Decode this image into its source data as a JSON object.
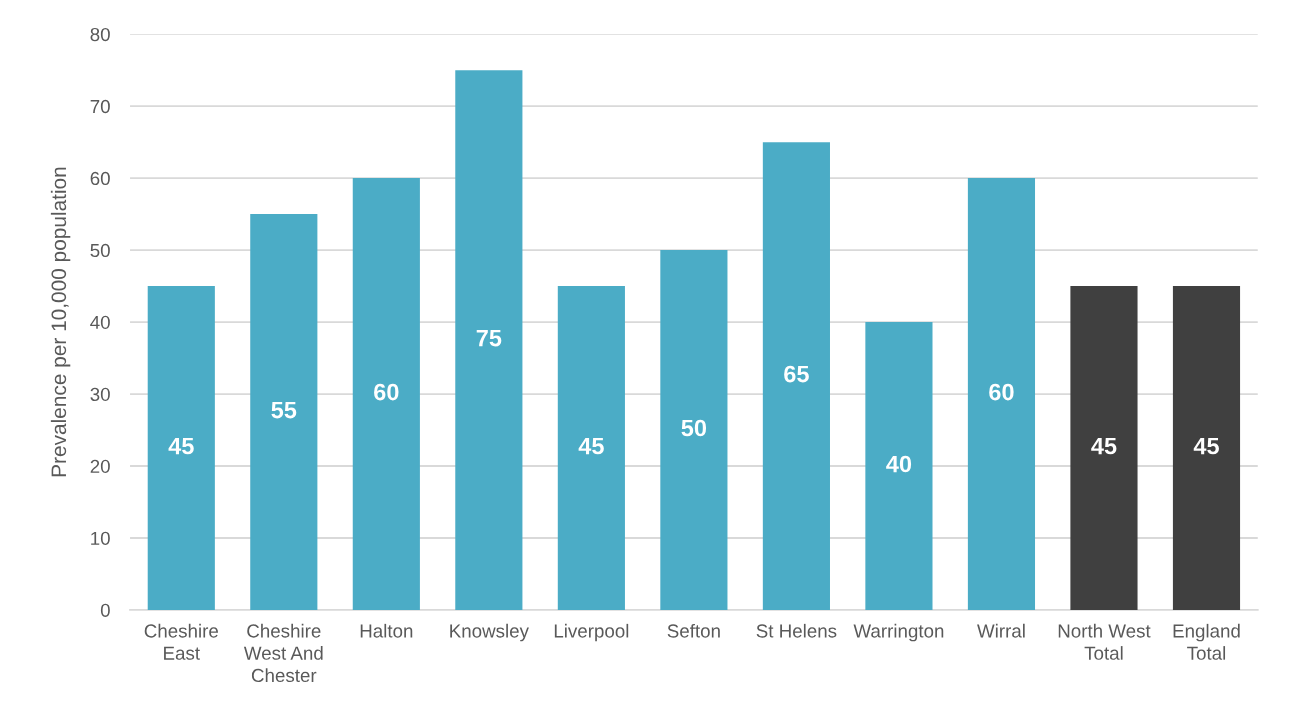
{
  "chart_data": {
    "type": "bar",
    "ylabel": "Prevalence per 10,000 population",
    "categories": [
      "Cheshire\nEast",
      "Cheshire\nWest And\nChester",
      "Halton",
      "Knowsley",
      "Liverpool",
      "Sefton",
      "St Helens",
      "Warrington",
      "Wirral",
      "North West\nTotal",
      "England\nTotal"
    ],
    "values": [
      45,
      55,
      60,
      75,
      45,
      50,
      65,
      40,
      60,
      45,
      45
    ],
    "colors": [
      "#4bacc6",
      "#4bacc6",
      "#4bacc6",
      "#4bacc6",
      "#4bacc6",
      "#4bacc6",
      "#4bacc6",
      "#4bacc6",
      "#4bacc6",
      "#404040",
      "#404040"
    ],
    "ylim": [
      0,
      80
    ],
    "yticks": [
      0,
      10,
      20,
      30,
      40,
      50,
      60,
      70,
      80
    ],
    "grid": "y",
    "data_labels": true
  }
}
